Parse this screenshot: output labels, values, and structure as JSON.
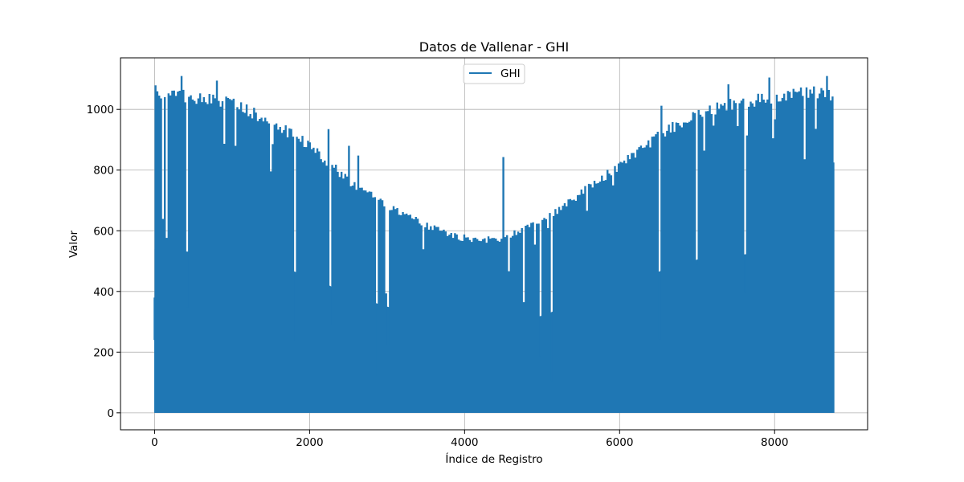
{
  "chart_data": {
    "type": "line",
    "title": "Datos de Vallenar - GHI",
    "xlabel": "Índice de Registro",
    "ylabel": "Valor",
    "xlim": [
      -440,
      9200
    ],
    "ylim": [
      -56,
      1170
    ],
    "xticks": [
      0,
      2000,
      4000,
      6000,
      8000
    ],
    "yticks": [
      0,
      200,
      400,
      600,
      800,
      1000
    ],
    "grid": true,
    "legend": {
      "position": "upper-center",
      "entries": [
        "GHI"
      ]
    },
    "series": [
      {
        "name": "GHI",
        "color": "#1f77b4",
        "n_points": 8760,
        "note": "Hourly global horizontal irradiance; daily peaks follow a seasonal envelope, nights are 0.",
        "daily_peak_envelope": {
          "x": [
            0,
            500,
            1000,
            1500,
            2000,
            2500,
            3000,
            3500,
            3900,
            4400,
            5000,
            5500,
            6000,
            6500,
            7000,
            7500,
            8000,
            8500,
            8760
          ],
          "y": [
            1080,
            1060,
            1040,
            980,
            900,
            780,
            700,
            630,
            590,
            580,
            640,
            740,
            830,
            930,
            1010,
            1040,
            1060,
            1080,
            1070
          ]
        },
        "notable_peaks": [
          {
            "x": 340,
            "y": 1110
          },
          {
            "x": 780,
            "y": 1095
          },
          {
            "x": 2240,
            "y": 935
          },
          {
            "x": 2500,
            "y": 880
          },
          {
            "x": 2620,
            "y": 848
          },
          {
            "x": 4490,
            "y": 843
          },
          {
            "x": 6530,
            "y": 1012
          },
          {
            "x": 7400,
            "y": 1083
          },
          {
            "x": 7920,
            "y": 1105
          },
          {
            "x": 8660,
            "y": 1110
          }
        ]
      }
    ]
  }
}
